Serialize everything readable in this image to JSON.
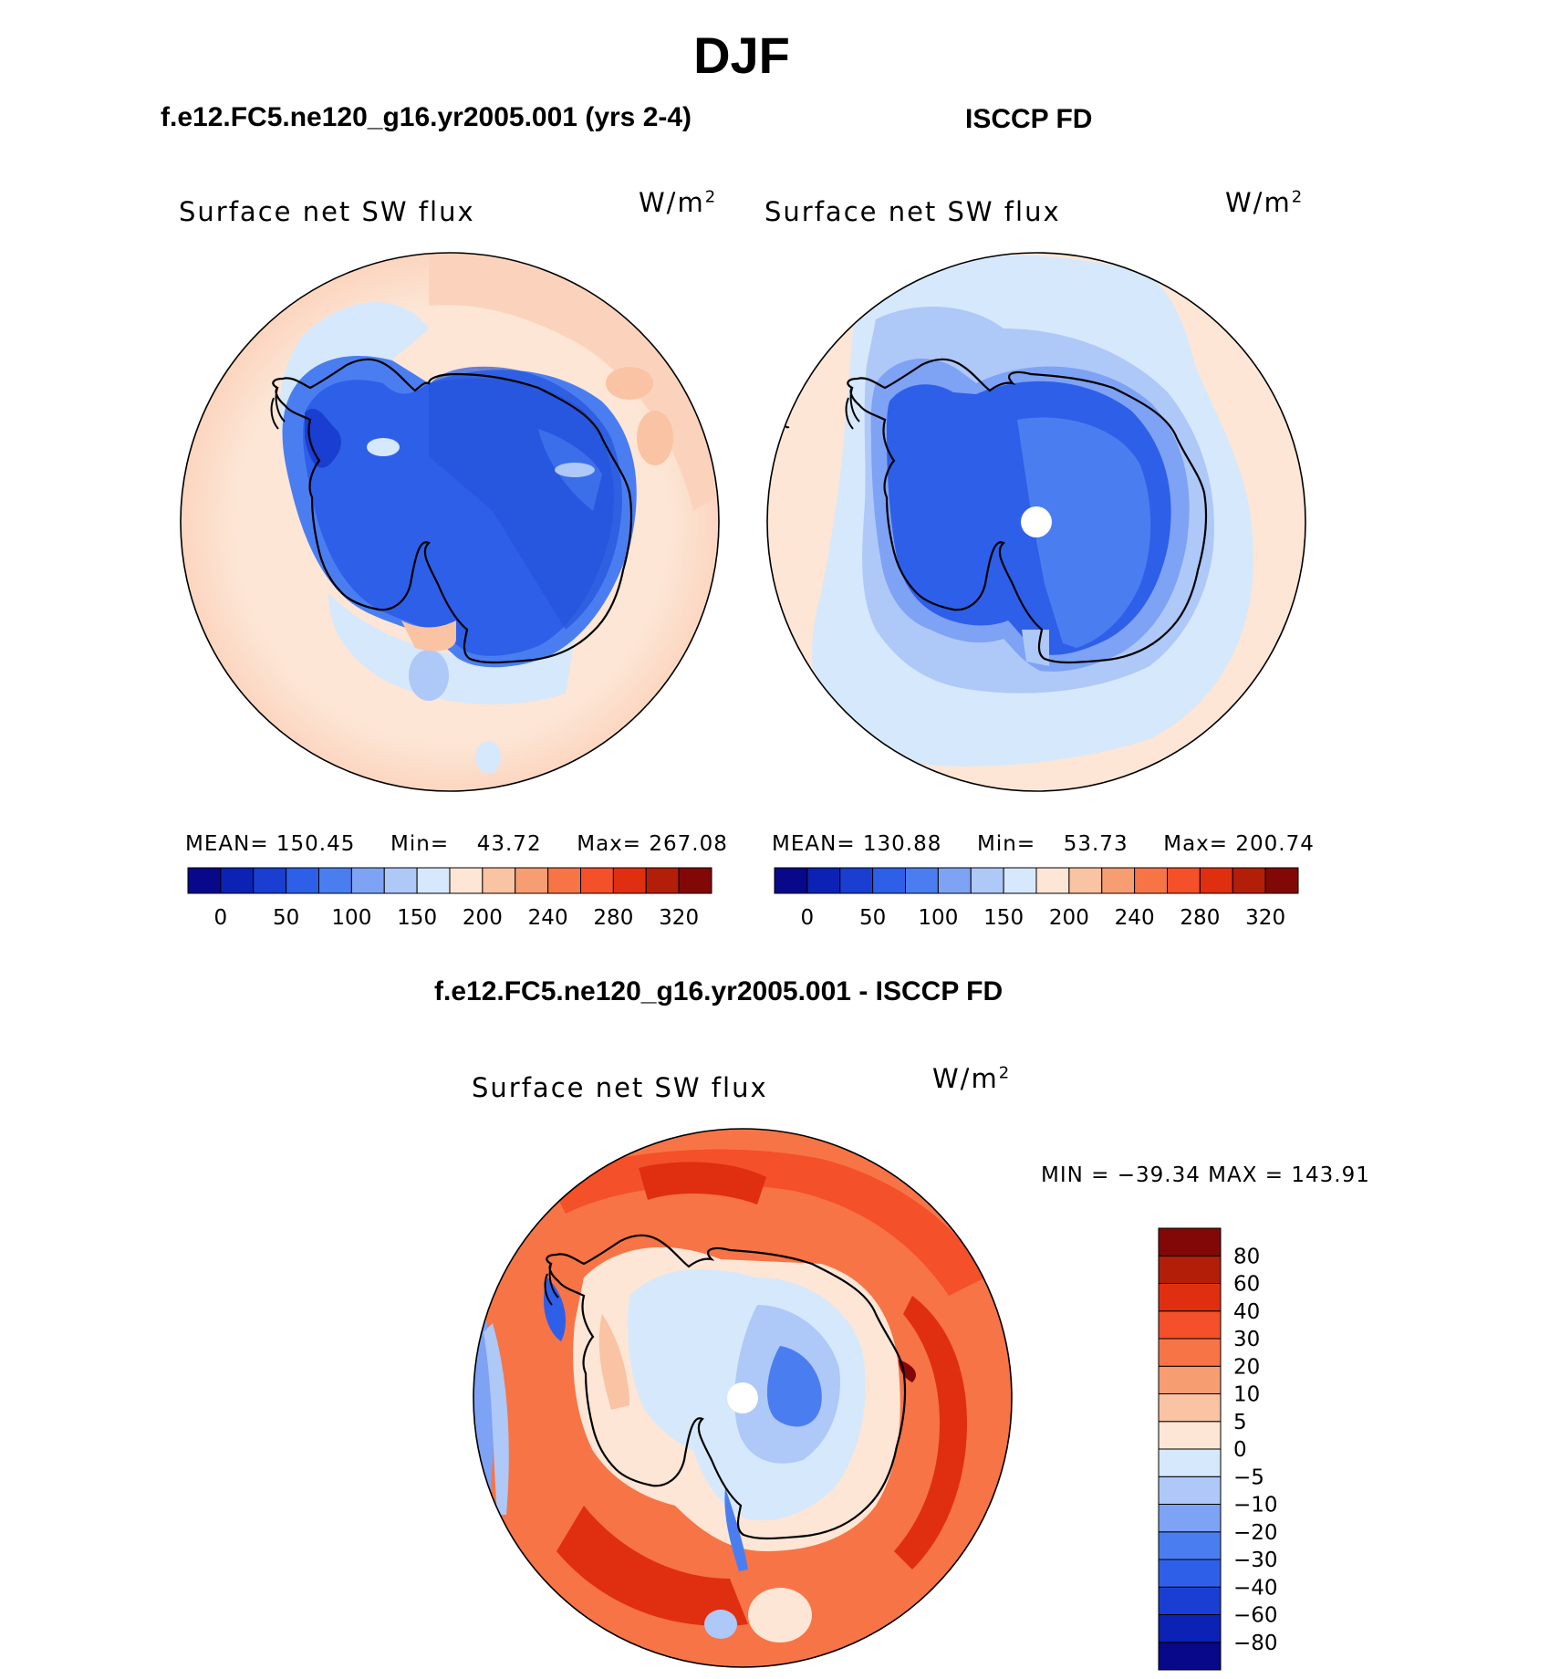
{
  "figure": {
    "season_title": "DJF",
    "left_panel_title": "f.e12.FC5.ne120_g16.yr2005.001 (yrs 2-4)",
    "right_panel_title": "ISCCP FD",
    "diff_panel_title": "f.e12.FC5.ne120_g16.yr2005.001 - ISCCP FD"
  },
  "panels": {
    "model": {
      "variable": "Surface net SW flux",
      "units_base": "W/m",
      "units_exp": "2",
      "mean_label": "MEAN=",
      "mean_value": "150.45",
      "min_label": "Min=",
      "min_value": "43.72",
      "max_label": "Max=",
      "max_value": "267.08"
    },
    "obs": {
      "variable": "Surface net SW flux",
      "units_base": "W/m",
      "units_exp": "2",
      "mean_label": "MEAN=",
      "mean_value": "130.88",
      "min_label": "Min=",
      "min_value": "53.73",
      "max_label": "Max=",
      "max_value": "200.74"
    },
    "diff": {
      "variable": "Surface net SW flux",
      "units_base": "W/m",
      "units_exp": "2",
      "min_max_text": "MIN = −39.34 MAX = 143.91"
    }
  },
  "colorbars": {
    "abs_colors": [
      "#08088a",
      "#0b22b4",
      "#1a3ed2",
      "#2e5fe8",
      "#4a7ef0",
      "#7ea2f4",
      "#aec8f8",
      "#d6e8fb",
      "#fde6d6",
      "#f9c3a4",
      "#f79d72",
      "#f77446",
      "#f4502a",
      "#e02f10",
      "#b31e08",
      "#820808"
    ],
    "abs_ticks": [
      "0",
      "50",
      "100",
      "150",
      "200",
      "240",
      "280",
      "320"
    ],
    "diff_colors": [
      "#08088a",
      "#0b22b4",
      "#1a3ed2",
      "#2e5fe8",
      "#4a7ef0",
      "#7ea2f4",
      "#aec8f8",
      "#d6e8fb",
      "#fde6d6",
      "#f9c3a4",
      "#f79d72",
      "#f77446",
      "#f4502a",
      "#e02f10",
      "#b31e08",
      "#820808"
    ],
    "diff_ticks": [
      "−80",
      "−60",
      "−40",
      "−30",
      "−20",
      "−10",
      "−5",
      "0",
      "5",
      "10",
      "20",
      "30",
      "40",
      "60",
      "80"
    ]
  }
}
